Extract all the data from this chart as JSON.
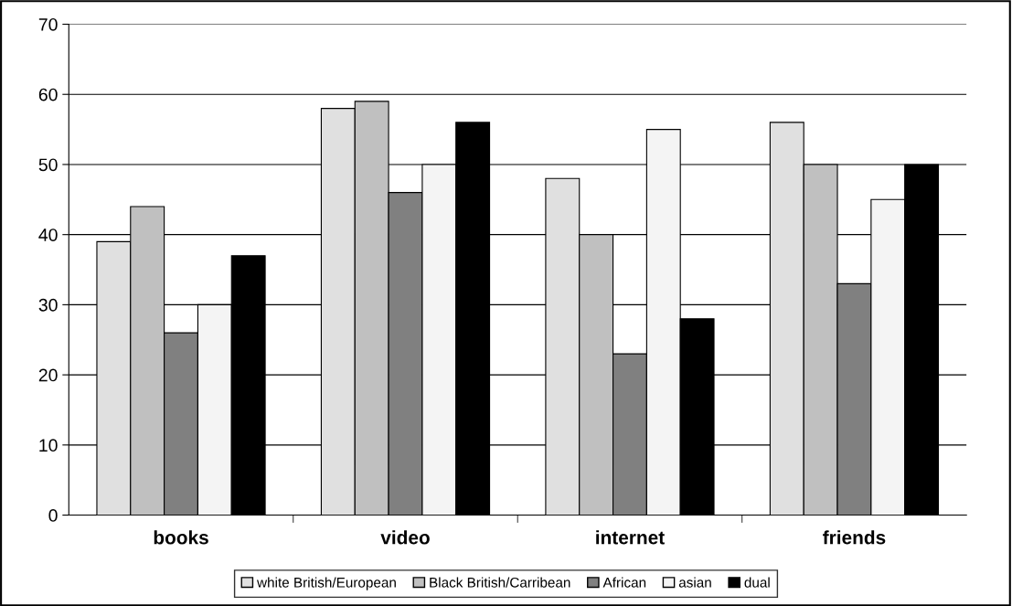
{
  "chart_data": {
    "type": "bar",
    "categories": [
      "books",
      "video",
      "internet",
      "friends"
    ],
    "series": [
      {
        "name": "white British/European",
        "color": "#e0e0e0",
        "values": [
          39,
          58,
          48,
          56
        ]
      },
      {
        "name": "Black British/Carribean",
        "color": "#c0c0c0",
        "values": [
          44,
          59,
          40,
          50
        ]
      },
      {
        "name": "African",
        "color": "#808080",
        "values": [
          26,
          46,
          23,
          33
        ]
      },
      {
        "name": "asian",
        "color": "#f4f4f4",
        "values": [
          30,
          50,
          55,
          45
        ]
      },
      {
        "name": "dual",
        "color": "#000000",
        "values": [
          37,
          56,
          28,
          50
        ]
      }
    ],
    "ylim": [
      0,
      70
    ],
    "yticks": [
      0,
      10,
      20,
      30,
      40,
      50,
      60,
      70
    ],
    "grid": "y",
    "legend": "bottom"
  }
}
